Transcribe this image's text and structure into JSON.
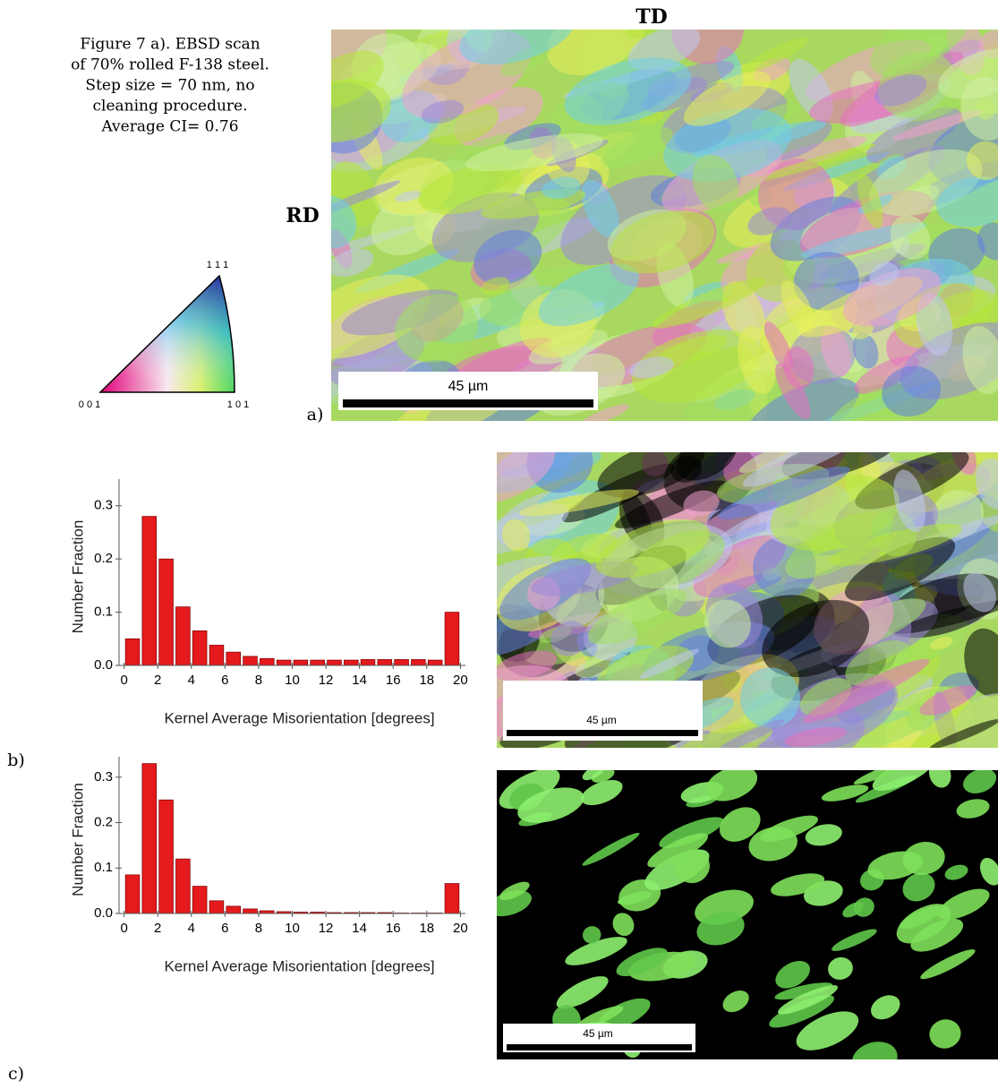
{
  "figure": {
    "caption": [
      "Figure 7 a).  EBSD scan",
      "of 70% rolled F-138 steel.",
      "Step size = 70 nm, no",
      "cleaning procedure.",
      "Average CI= 0.76"
    ],
    "td_label": "TD",
    "rd_label": "RD",
    "ipf_labels": [
      "1 1 1",
      "0 0 1",
      "1 0 1"
    ],
    "scale_bars": [
      "45 µm",
      "45 µm",
      "45 µm"
    ],
    "panel_labels": [
      "a)",
      "b)",
      "c)"
    ]
  },
  "chart_data": [
    {
      "type": "histogram",
      "x_label": "Kernel Average Misorientation [degrees]",
      "y_label": "Number Fraction",
      "bins": [
        0,
        1,
        2,
        3,
        4,
        5,
        6,
        7,
        8,
        9,
        10,
        11,
        12,
        13,
        14,
        15,
        16,
        17,
        18,
        19,
        20
      ],
      "values": [
        0.05,
        0.28,
        0.2,
        0.11,
        0.065,
        0.038,
        0.025,
        0.017,
        0.013,
        0.01,
        0.01,
        0.01,
        0.01,
        0.01,
        0.011,
        0.011,
        0.011,
        0.011,
        0.01,
        0.1
      ],
      "color": "#e41a1c",
      "xlim": [
        -0.3,
        20.3
      ],
      "ylim": [
        0,
        0.35
      ],
      "xticks": [
        0,
        2,
        4,
        6,
        8,
        10,
        12,
        14,
        16,
        18,
        20
      ],
      "yticks": [
        {
          "value": 0,
          "label": "0.0"
        },
        0.1,
        0.2,
        0.3
      ]
    },
    {
      "type": "histogram",
      "x_label": "Kernel Average Misorientation [degrees]",
      "y_label": "Number Fraction",
      "bins": [
        0,
        1,
        2,
        3,
        4,
        5,
        6,
        7,
        8,
        9,
        10,
        11,
        12,
        13,
        14,
        15,
        16,
        17,
        18,
        19,
        20
      ],
      "values": [
        0.085,
        0.33,
        0.25,
        0.12,
        0.06,
        0.028,
        0.016,
        0.01,
        0.006,
        0.004,
        0.003,
        0.003,
        0.002,
        0.002,
        0.002,
        0.002,
        0.001,
        0.001,
        0.001,
        0.066
      ],
      "color": "#e41a1c",
      "xlim": [
        -0.3,
        20.3
      ],
      "ylim": [
        0,
        0.345
      ],
      "xticks": [
        0,
        2,
        4,
        6,
        8,
        10,
        12,
        14,
        16,
        18,
        20
      ],
      "yticks": [
        {
          "value": 0,
          "label": "0.0"
        },
        0.1,
        0.2,
        0.3
      ]
    }
  ]
}
